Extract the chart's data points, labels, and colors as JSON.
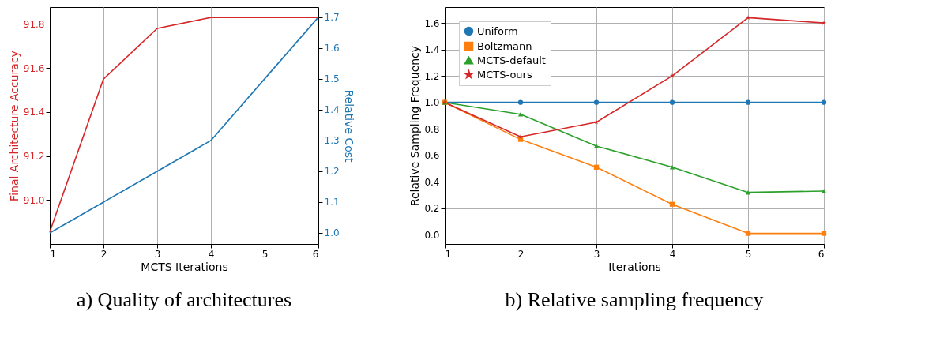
{
  "chart_data": [
    {
      "type": "line",
      "title": "a) Quality of architectures",
      "xlabel": "MCTS Iterations",
      "ylabel": "Final Architecture Accuracy",
      "y2label": "Relative Cost",
      "x": [
        1,
        2,
        3,
        4,
        5,
        6
      ],
      "xlim": [
        1,
        6
      ],
      "xticks": [
        1,
        2,
        3,
        4,
        5,
        6
      ],
      "ylim": [
        90.8,
        91.877
      ],
      "yticks": [
        {
          "value": 91,
          "label": "91.0"
        },
        91.2,
        91.4,
        91.6,
        91.8
      ],
      "y2lim": [
        0.964,
        1.733
      ],
      "y2ticks": [
        {
          "value": 1,
          "label": "1.0"
        },
        1.1,
        1.2,
        1.3,
        1.4,
        1.5,
        1.6,
        1.7
      ],
      "grid": "x",
      "series": [
        {
          "color": "#d62728",
          "values": [
            90.855,
            91.55,
            91.78,
            91.83,
            91.83,
            91.83
          ]
        },
        {
          "color": "#1f77b4",
          "axis": "y2",
          "values": [
            1.0,
            1.1,
            1.2,
            1.3,
            1.5,
            1.7
          ]
        }
      ]
    },
    {
      "type": "line",
      "title": "b) Relative sampling frequency",
      "xlabel": "Iterations",
      "ylabel": "Relative Sampling Frequency",
      "x": [
        1,
        2,
        3,
        4,
        5,
        6
      ],
      "xlim": [
        1,
        6
      ],
      "xticks": [
        1,
        2,
        3,
        4,
        5,
        6
      ],
      "ylim": [
        -0.07,
        1.72
      ],
      "yticks": [
        {
          "value": 0,
          "label": "0.0"
        },
        0.2,
        0.4,
        0.6,
        0.8,
        {
          "value": 1,
          "label": "1.0"
        },
        1.2,
        1.4,
        1.6
      ],
      "grid": true,
      "legend": "top left",
      "series": [
        {
          "name": "Uniform",
          "color": "#1f77b4",
          "marker": "circle",
          "values": [
            1.0,
            1.0,
            1.0,
            1.0,
            1.0,
            1.0
          ]
        },
        {
          "name": "Boltzmann",
          "color": "#ff7f0e",
          "marker": "square",
          "values": [
            1.0,
            0.72,
            0.51,
            0.23,
            0.01,
            0.01
          ]
        },
        {
          "name": "MCTS-default",
          "color": "#2ca02c",
          "marker": "triangle",
          "values": [
            1.0,
            0.91,
            0.67,
            0.51,
            0.32,
            0.33
          ]
        },
        {
          "name": "MCTS-ours",
          "color": "#d62728",
          "marker": "star",
          "values": [
            1.0,
            0.74,
            0.85,
            1.2,
            1.64,
            1.6
          ]
        }
      ]
    }
  ]
}
